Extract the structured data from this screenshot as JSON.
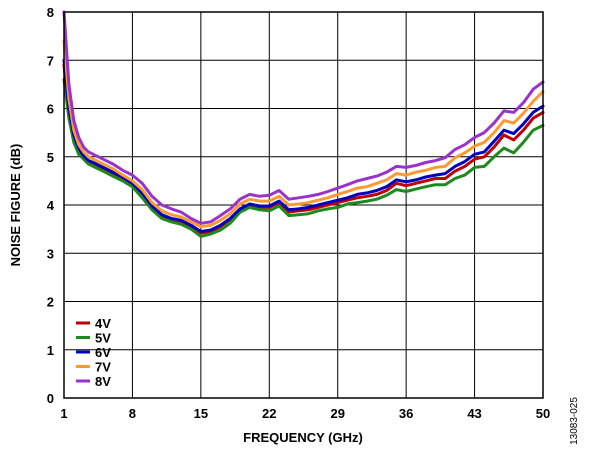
{
  "chart_data": {
    "type": "line",
    "xlabel": "FREQUENCY (GHz)",
    "ylabel": "NOISE FIGURE (dB)",
    "xlim": [
      1,
      50
    ],
    "ylim": [
      0,
      8
    ],
    "xticks": [
      "1",
      "8",
      "15",
      "22",
      "29",
      "36",
      "43",
      "50"
    ],
    "yticks": [
      "0",
      "1",
      "2",
      "3",
      "4",
      "5",
      "6",
      "7",
      "8"
    ],
    "grid": true,
    "legend_position": "bottom-left",
    "x": [
      1,
      1.5,
      2,
      2.5,
      3,
      3.5,
      4,
      5,
      6,
      7,
      8,
      9,
      10,
      11,
      12,
      13,
      14,
      15,
      16,
      17,
      18,
      19,
      20,
      21,
      22,
      23,
      24,
      25,
      26,
      27,
      28,
      29,
      30,
      31,
      32,
      33,
      34,
      35,
      36,
      37,
      38,
      39,
      40,
      41,
      42,
      43,
      44,
      45,
      46,
      47,
      48,
      49,
      50
    ],
    "series": [
      {
        "name": "4V",
        "color": "#c00000",
        "values": [
          6.9,
          5.9,
          5.4,
          5.15,
          5.0,
          4.9,
          4.85,
          4.75,
          4.65,
          4.55,
          4.42,
          4.2,
          3.95,
          3.75,
          3.68,
          3.65,
          3.55,
          3.42,
          3.45,
          3.55,
          3.7,
          3.9,
          4.0,
          3.95,
          3.95,
          4.05,
          3.85,
          3.88,
          3.9,
          3.95,
          4.0,
          4.05,
          4.1,
          4.15,
          4.18,
          4.22,
          4.3,
          4.45,
          4.4,
          4.45,
          4.5,
          4.55,
          4.55,
          4.7,
          4.8,
          4.95,
          5.0,
          5.2,
          5.45,
          5.35,
          5.55,
          5.8,
          5.92
        ]
      },
      {
        "name": "5V",
        "color": "#1e8a1e",
        "values": [
          6.6,
          5.8,
          5.3,
          5.05,
          4.95,
          4.85,
          4.8,
          4.7,
          4.6,
          4.5,
          4.38,
          4.15,
          3.9,
          3.72,
          3.65,
          3.6,
          3.5,
          3.35,
          3.4,
          3.48,
          3.62,
          3.85,
          3.95,
          3.9,
          3.88,
          3.98,
          3.78,
          3.8,
          3.82,
          3.88,
          3.92,
          3.95,
          4.02,
          4.05,
          4.08,
          4.12,
          4.2,
          4.32,
          4.28,
          4.33,
          4.38,
          4.42,
          4.42,
          4.55,
          4.62,
          4.78,
          4.8,
          5.0,
          5.18,
          5.08,
          5.3,
          5.55,
          5.65
        ]
      },
      {
        "name": "6V",
        "color": "#0000c0",
        "values": [
          7.0,
          6.0,
          5.45,
          5.18,
          5.02,
          4.92,
          4.88,
          4.78,
          4.68,
          4.58,
          4.45,
          4.25,
          3.98,
          3.8,
          3.72,
          3.68,
          3.58,
          3.45,
          3.48,
          3.58,
          3.72,
          3.92,
          4.02,
          3.98,
          3.98,
          4.08,
          3.9,
          3.92,
          3.95,
          4.0,
          4.05,
          4.1,
          4.15,
          4.22,
          4.25,
          4.3,
          4.38,
          4.52,
          4.48,
          4.52,
          4.58,
          4.62,
          4.65,
          4.8,
          4.9,
          5.05,
          5.1,
          5.32,
          5.55,
          5.48,
          5.68,
          5.92,
          6.05
        ]
      },
      {
        "name": "7V",
        "color": "#ff9933",
        "values": [
          7.4,
          6.2,
          5.55,
          5.25,
          5.1,
          5.0,
          4.95,
          4.85,
          4.75,
          4.62,
          4.5,
          4.32,
          4.05,
          3.88,
          3.8,
          3.75,
          3.65,
          3.55,
          3.58,
          3.68,
          3.82,
          4.02,
          4.12,
          4.08,
          4.08,
          4.18,
          4.0,
          4.02,
          4.05,
          4.1,
          4.15,
          4.22,
          4.28,
          4.35,
          4.38,
          4.45,
          4.52,
          4.65,
          4.62,
          4.68,
          4.72,
          4.78,
          4.8,
          4.98,
          5.08,
          5.22,
          5.3,
          5.5,
          5.75,
          5.7,
          5.9,
          6.15,
          6.35
        ]
      },
      {
        "name": "8V",
        "color": "#9933cc",
        "values": [
          8.0,
          6.5,
          5.75,
          5.4,
          5.2,
          5.1,
          5.05,
          4.95,
          4.85,
          4.72,
          4.62,
          4.45,
          4.18,
          4.0,
          3.92,
          3.85,
          3.72,
          3.62,
          3.65,
          3.78,
          3.92,
          4.12,
          4.22,
          4.18,
          4.2,
          4.3,
          4.12,
          4.15,
          4.18,
          4.22,
          4.28,
          4.35,
          4.42,
          4.5,
          4.55,
          4.6,
          4.68,
          4.8,
          4.78,
          4.82,
          4.88,
          4.92,
          4.98,
          5.15,
          5.25,
          5.4,
          5.5,
          5.7,
          5.95,
          5.92,
          6.12,
          6.4,
          6.55
        ]
      }
    ]
  },
  "figure_id": "13083-025"
}
